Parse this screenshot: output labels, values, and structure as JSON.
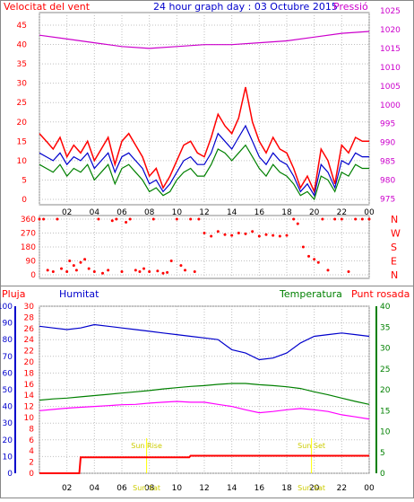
{
  "header": {
    "title": "24 hour graph day : 03 Octubre 2015",
    "left_label": "Velocitat del vent",
    "right_label": "Pressió"
  },
  "colors": {
    "wind_gust": "#ff0000",
    "wind_avg": "#0000cc",
    "wind_green": "#008000",
    "pressure": "#cc00cc",
    "direction": "#ff0000",
    "humidity": "#0000cc",
    "temperature": "#008000",
    "dewpoint": "#ff00ff",
    "rain": "#ff0000",
    "sun_marker": "#ffff00",
    "grid": "#c0c0c0"
  },
  "chart_data": [
    {
      "type": "line",
      "name": "wind-pressure",
      "xlabels": [
        "02",
        "04",
        "06",
        "08",
        "10",
        "12",
        "14",
        "16",
        "18",
        "20",
        "22",
        "00"
      ],
      "left_ticks": [
        0,
        5,
        10,
        15,
        20,
        25,
        30,
        35,
        40,
        45
      ],
      "right_ticks": [
        975,
        980,
        985,
        990,
        995,
        1000,
        1005,
        1010,
        1015,
        1020,
        1025
      ],
      "left_ylim": [
        0,
        45
      ],
      "right_ylim": [
        972.5,
        1025
      ],
      "series": [
        {
          "role": "gust",
          "x": [
            0,
            0.5,
            1,
            1.5,
            2,
            2.5,
            3,
            3.5,
            4,
            4.5,
            5,
            5.5,
            6,
            6.5,
            7,
            7.5,
            8,
            8.5,
            9,
            9.5,
            10,
            10.5,
            11,
            11.5,
            12,
            12.5,
            13,
            13.5,
            14,
            14.5,
            15,
            15.5,
            16,
            16.5,
            17,
            17.5,
            18,
            18.5,
            19,
            19.5,
            20,
            20.5,
            21,
            21.5,
            22,
            22.5,
            23,
            23.5,
            24
          ],
          "y": [
            17,
            15,
            13,
            16,
            11,
            14,
            12,
            15,
            10,
            13,
            16,
            9,
            15,
            17,
            14,
            11,
            6,
            8,
            3,
            6,
            10,
            14,
            15,
            12,
            11,
            16,
            22,
            19,
            17,
            21,
            29,
            20,
            15,
            12,
            16,
            13,
            12,
            8,
            3,
            6,
            2,
            13,
            10,
            4,
            14,
            12,
            16,
            15,
            15
          ]
        },
        {
          "role": "average",
          "x": [
            0,
            0.5,
            1,
            1.5,
            2,
            2.5,
            3,
            3.5,
            4,
            4.5,
            5,
            5.5,
            6,
            6.5,
            7,
            7.5,
            8,
            8.5,
            9,
            9.5,
            10,
            10.5,
            11,
            11.5,
            12,
            12.5,
            13,
            13.5,
            14,
            14.5,
            15,
            15.5,
            16,
            16.5,
            17,
            17.5,
            18,
            18.5,
            19,
            19.5,
            20,
            20.5,
            21,
            21.5,
            22,
            22.5,
            23,
            23.5,
            24
          ],
          "y": [
            12,
            11,
            10,
            12,
            9,
            11,
            10,
            12,
            8,
            10,
            12,
            7,
            11,
            12,
            10,
            8,
            4,
            5,
            2,
            4,
            7,
            10,
            11,
            9,
            9,
            12,
            17,
            15,
            13,
            16,
            19,
            15,
            11,
            9,
            12,
            10,
            9,
            6,
            2,
            4,
            1,
            9,
            7,
            3,
            10,
            9,
            12,
            11,
            11
          ]
        },
        {
          "role": "low",
          "x": [
            0,
            0.5,
            1,
            1.5,
            2,
            2.5,
            3,
            3.5,
            4,
            4.5,
            5,
            5.5,
            6,
            6.5,
            7,
            7.5,
            8,
            8.5,
            9,
            9.5,
            10,
            10.5,
            11,
            11.5,
            12,
            12.5,
            13,
            13.5,
            14,
            14.5,
            15,
            15.5,
            16,
            16.5,
            17,
            17.5,
            18,
            18.5,
            19,
            19.5,
            20,
            20.5,
            21,
            21.5,
            22,
            22.5,
            23,
            23.5,
            24
          ],
          "y": [
            9,
            8,
            7,
            9,
            6,
            8,
            7,
            9,
            5,
            7,
            9,
            4,
            8,
            9,
            7,
            5,
            2,
            3,
            1,
            2,
            5,
            7,
            8,
            6,
            6,
            9,
            13,
            12,
            10,
            12,
            14,
            11,
            8,
            6,
            9,
            7,
            6,
            4,
            1,
            2,
            0,
            6,
            5,
            2,
            7,
            6,
            9,
            8,
            8
          ]
        },
        {
          "role": "pressure",
          "x": [
            0,
            2,
            4,
            6,
            8,
            10,
            12,
            14,
            16,
            18,
            20,
            22,
            24
          ],
          "y": [
            1018.5,
            1017.5,
            1016.5,
            1015.5,
            1015,
            1015.5,
            1016,
            1016,
            1016.5,
            1017,
            1018,
            1019,
            1019.5
          ]
        }
      ]
    },
    {
      "type": "scatter",
      "name": "wind-direction",
      "xlabels": [
        "02",
        "04",
        "06",
        "08",
        "10",
        "12",
        "14",
        "16",
        "18",
        "20",
        "22",
        "00"
      ],
      "ylabels": [
        "360",
        "270",
        "180",
        "90",
        "0"
      ],
      "right_labels": [
        "N",
        "W",
        "S",
        "E",
        "N"
      ],
      "ylim": [
        0,
        360
      ],
      "x": [
        0,
        0.3,
        0.6,
        1,
        1.3,
        1.6,
        2,
        2.2,
        2.5,
        2.7,
        3,
        3.3,
        3.6,
        4,
        4.3,
        4.6,
        5,
        5.3,
        5.6,
        6,
        6.3,
        6.6,
        7,
        7.3,
        7.6,
        8,
        8.3,
        8.6,
        9,
        9.3,
        9.6,
        10,
        10.3,
        10.6,
        11,
        11.3,
        11.6,
        12,
        12.5,
        13,
        13.5,
        14,
        14.5,
        15,
        15.5,
        16,
        16.5,
        17,
        17.5,
        18,
        18.5,
        18.8,
        19.2,
        19.6,
        20,
        20.3,
        20.6,
        21,
        21.5,
        22,
        22.5,
        23,
        23.5,
        24
      ],
      "y": [
        360,
        360,
        30,
        20,
        360,
        40,
        20,
        90,
        60,
        30,
        80,
        100,
        40,
        20,
        360,
        10,
        30,
        350,
        360,
        20,
        340,
        360,
        30,
        20,
        40,
        20,
        360,
        25,
        10,
        15,
        90,
        360,
        60,
        30,
        360,
        20,
        360,
        270,
        250,
        280,
        260,
        255,
        270,
        265,
        280,
        250,
        260,
        255,
        250,
        255,
        360,
        330,
        180,
        120,
        100,
        80,
        360,
        30,
        360,
        360,
        20,
        360,
        360,
        360
      ]
    },
    {
      "type": "line",
      "name": "humidity-temperature-rain",
      "header_labels": {
        "rain": "Pluja",
        "humidity": "Humitat",
        "temperature": "Temperatura",
        "dewpoint": "Punt rosada"
      },
      "xlabels": [
        "02",
        "04",
        "06",
        "08",
        "10",
        "12",
        "14",
        "16",
        "18",
        "20",
        "22",
        "00"
      ],
      "rain_ticks": [
        0,
        10,
        20,
        30,
        40,
        50,
        60,
        70,
        80,
        90,
        100
      ],
      "humidity_ticks": [
        0,
        2,
        4,
        6,
        8,
        10,
        12,
        14,
        16,
        18,
        20,
        22,
        24,
        26,
        28,
        30
      ],
      "temp_ticks": [
        0,
        5,
        10,
        15,
        20,
        25,
        30,
        35,
        40
      ],
      "markers": [
        {
          "label": "Sun Rise",
          "x": 7.8
        },
        {
          "label": "Sun Set",
          "x": 19.8
        }
      ],
      "overlap_labels": [
        {
          "text": "Sun Sat",
          "x": 7.8
        },
        {
          "text": "Sun Sat",
          "x": 19.8
        }
      ],
      "series": [
        {
          "role": "humidity",
          "x": [
            0,
            1,
            2,
            3,
            4,
            5,
            6,
            7,
            8,
            9,
            10,
            11,
            12,
            13,
            14,
            15,
            16,
            17,
            18,
            19,
            20,
            21,
            22,
            23,
            24
          ],
          "y": [
            88,
            87,
            86,
            87,
            89,
            88,
            87,
            86,
            85,
            84,
            83,
            82,
            81,
            80,
            74,
            72,
            68,
            69,
            72,
            78,
            82,
            83,
            84,
            83,
            82
          ]
        },
        {
          "role": "temperature",
          "x": [
            0,
            1,
            2,
            3,
            4,
            5,
            6,
            7,
            8,
            9,
            10,
            11,
            12,
            13,
            14,
            15,
            16,
            17,
            18,
            19,
            20,
            21,
            22,
            23,
            24
          ],
          "y": [
            17.5,
            17.8,
            18,
            18.3,
            18.6,
            18.9,
            19.2,
            19.5,
            19.8,
            20.2,
            20.5,
            20.8,
            21,
            21.3,
            21.5,
            21.5,
            21.2,
            21,
            20.7,
            20.3,
            19.5,
            18.8,
            18,
            17.2,
            16.5
          ]
        },
        {
          "role": "dewpoint",
          "x": [
            0,
            1,
            2,
            3,
            4,
            5,
            6,
            7,
            8,
            9,
            10,
            11,
            12,
            13,
            14,
            15,
            16,
            17,
            18,
            19,
            20,
            21,
            22,
            23,
            24
          ],
          "y": [
            15,
            15.3,
            15.6,
            15.8,
            16,
            16.2,
            16.4,
            16.5,
            16.8,
            17,
            17.2,
            17,
            17,
            16.5,
            16,
            15.2,
            14.5,
            14.8,
            15.2,
            15.5,
            15.2,
            14.8,
            14,
            13.5,
            13
          ]
        },
        {
          "role": "rain",
          "x": [
            0,
            2.9,
            3,
            10.9,
            11,
            24
          ],
          "y": [
            0,
            0,
            3.8,
            3.8,
            4.2,
            4.2
          ]
        }
      ]
    }
  ]
}
